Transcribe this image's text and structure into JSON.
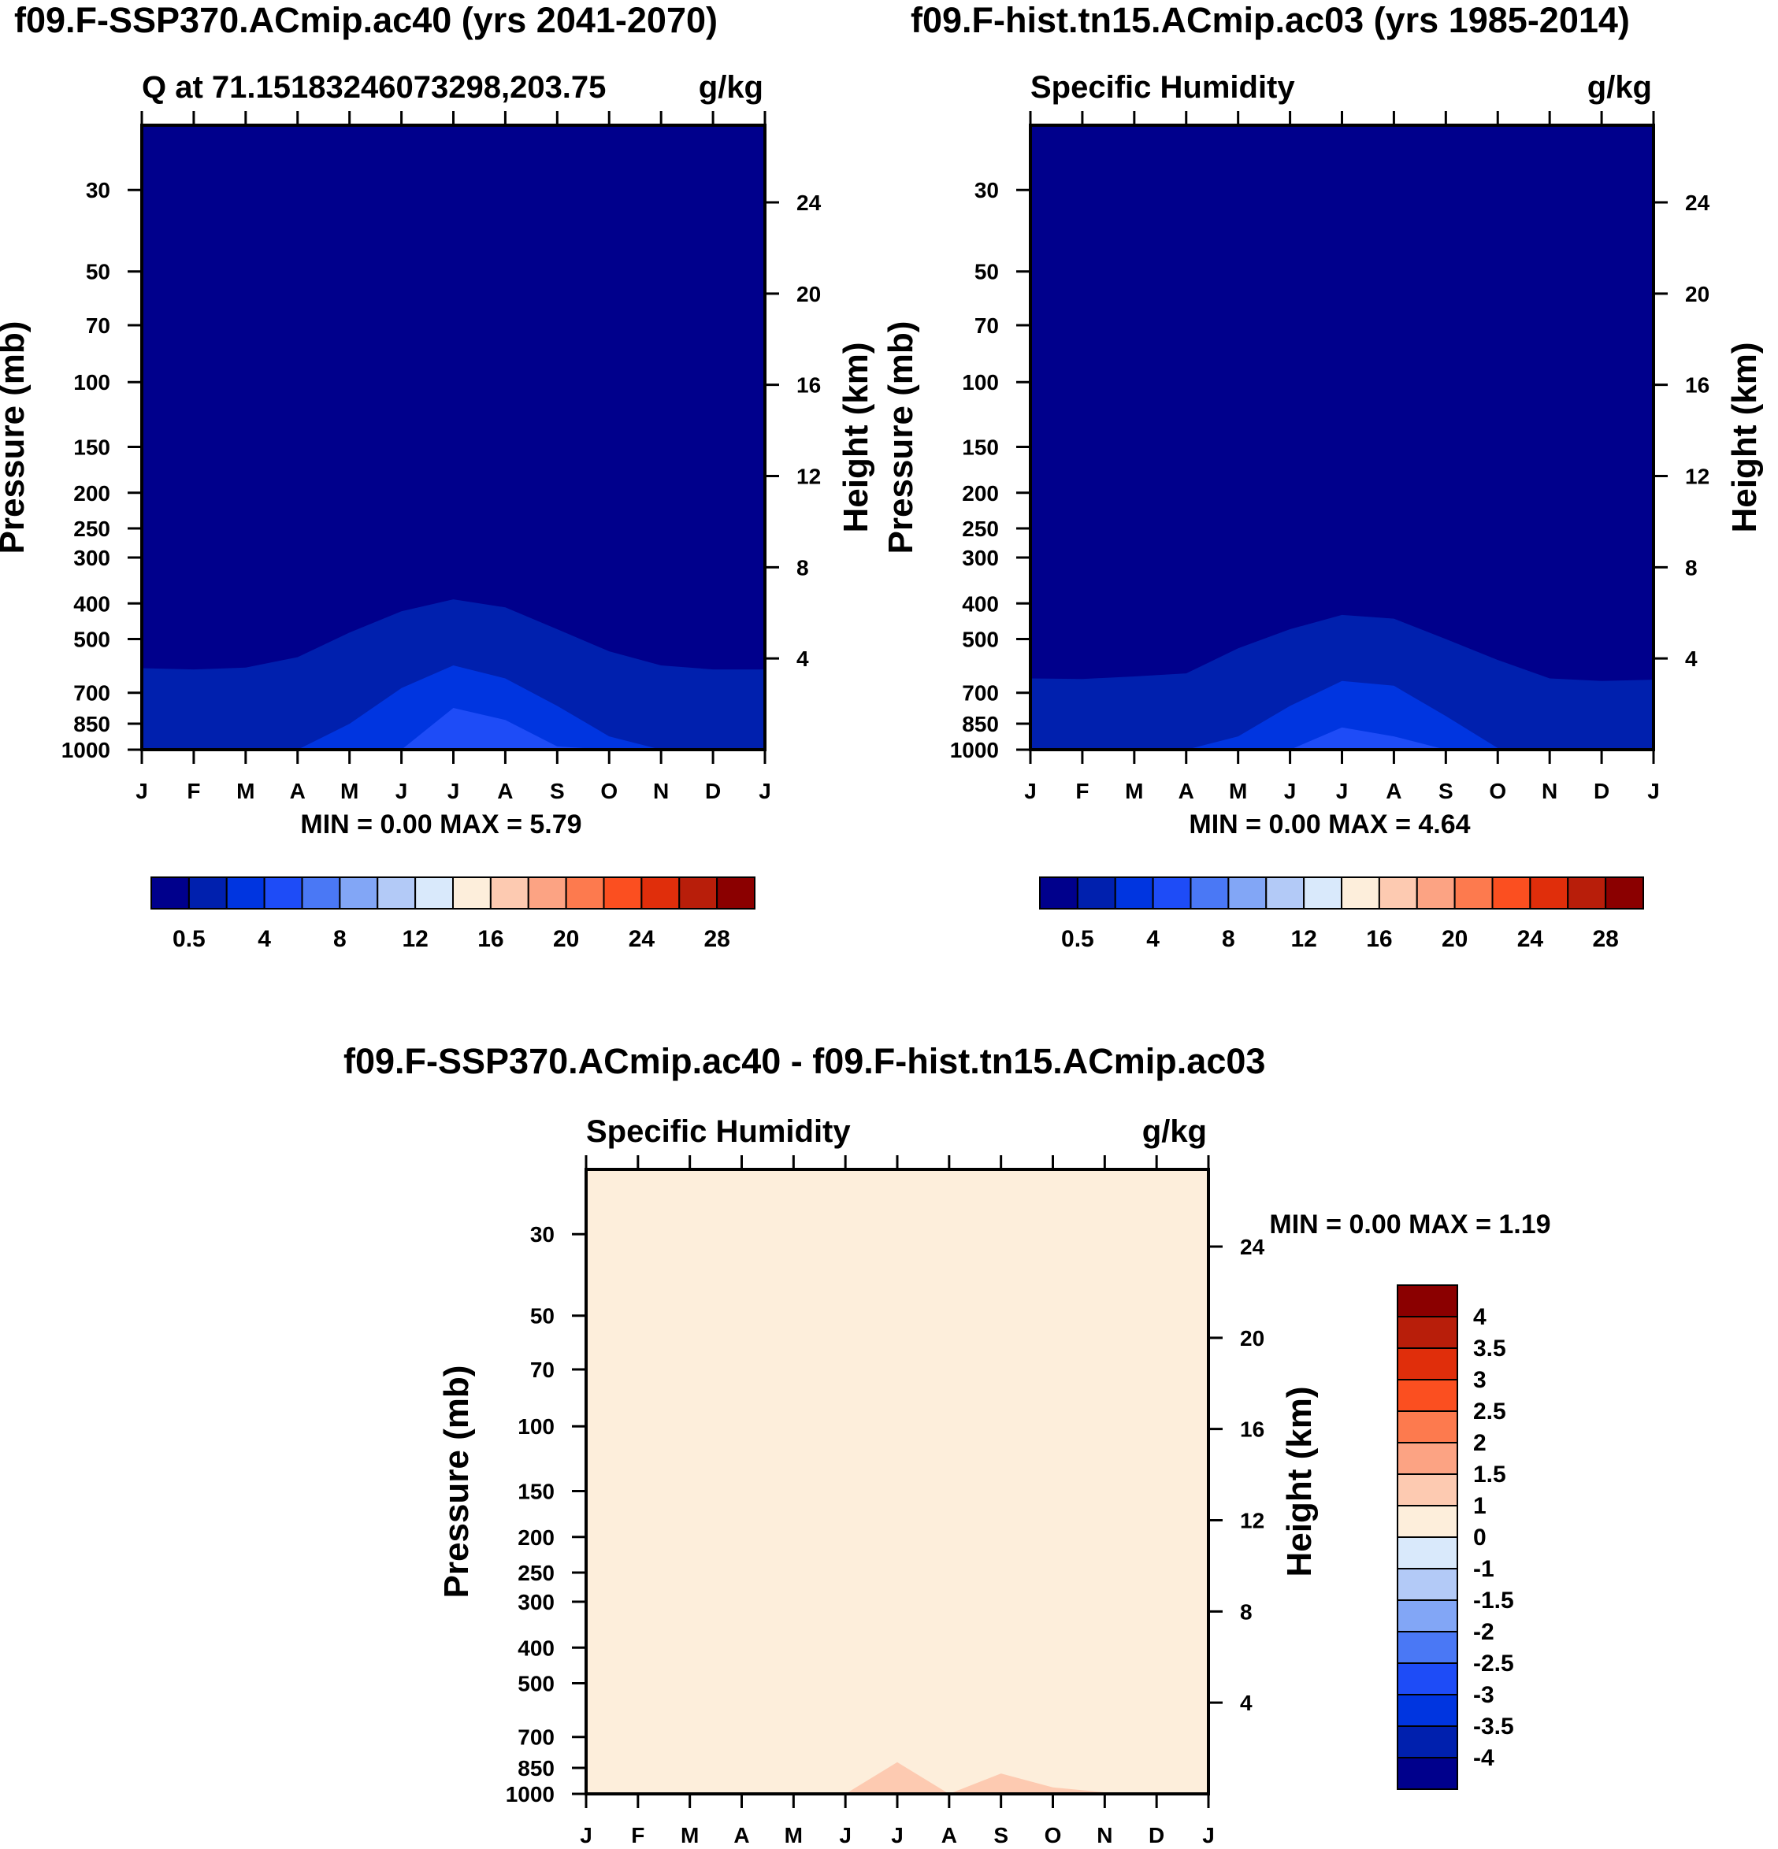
{
  "page": {
    "title_left": "f09.F-SSP370.ACmip.ac40 (yrs 2041-2070)",
    "title_right": "f09.F-hist.tn15.ACmip.ac03 (yrs 1985-2014)",
    "title_bottom": "f09.F-SSP370.ACmip.ac40 - f09.F-hist.tn15.ACmip.ac03"
  },
  "colors": {
    "abs_scale": [
      "#00008c",
      "#0020ae",
      "#0035e0",
      "#1e4cf7",
      "#4a78f5",
      "#82a6f6",
      "#b3caf7",
      "#d9e9fb",
      "#fdeedb",
      "#fdcab1",
      "#fca383",
      "#fd7a4e",
      "#fb4f20",
      "#e02e0b",
      "#b81e0a",
      "#8b0000"
    ],
    "diff_scale": [
      "#00008c",
      "#0020ae",
      "#0035e0",
      "#1e4cf7",
      "#4a78f5",
      "#82a6f6",
      "#b3caf7",
      "#d9e9fb",
      "#fdeedb",
      "#fdcab1",
      "#fca383",
      "#fd7a4e",
      "#fb4f20",
      "#e02e0b",
      "#b81e0a",
      "#8b0000"
    ]
  },
  "chart_data": [
    {
      "id": "left",
      "type": "contour",
      "left_title": "Q at 71.15183246073298,203.75",
      "right_title": "g/kg",
      "ylabel": "Pressure (mb)",
      "y2label": "Height (km)",
      "x_ticks": [
        "J",
        "F",
        "M",
        "A",
        "M",
        "J",
        "J",
        "A",
        "S",
        "O",
        "N",
        "D",
        "J"
      ],
      "y_ticks": [
        30,
        50,
        70,
        100,
        150,
        200,
        250,
        300,
        400,
        500,
        700,
        850,
        1000
      ],
      "y2_ticks": [
        24,
        20,
        16,
        12,
        8,
        4
      ],
      "ylim": [
        20,
        1000
      ],
      "min_label": "MIN =",
      "min_value": "0.00",
      "max_label": "MAX =",
      "max_value": "5.79",
      "colorbar_labels": [
        "0.5",
        "4",
        "8",
        "12",
        "16",
        "20",
        "24",
        "28"
      ],
      "background_level": 0,
      "contours": [
        {
          "level": 1,
          "top_pressure": [
            600,
            605,
            598,
            560,
            480,
            420,
            390,
            410,
            470,
            540,
            590,
            605,
            605
          ]
        },
        {
          "level": 2,
          "top_pressure": [
            1000,
            1000,
            1000,
            1000,
            850,
            680,
            590,
            640,
            760,
            920,
            1000,
            1000,
            1000
          ]
        },
        {
          "level": 3,
          "top_pressure": [
            1000,
            1000,
            1000,
            1000,
            1000,
            1000,
            770,
            830,
            980,
            1000,
            1000,
            1000,
            1000
          ]
        }
      ]
    },
    {
      "id": "right",
      "type": "contour",
      "left_title": "Specific Humidity",
      "right_title": "g/kg",
      "ylabel": "Pressure (mb)",
      "y2label": "Height (km)",
      "x_ticks": [
        "J",
        "F",
        "M",
        "A",
        "M",
        "J",
        "J",
        "A",
        "S",
        "O",
        "N",
        "D",
        "J"
      ],
      "y_ticks": [
        30,
        50,
        70,
        100,
        150,
        200,
        250,
        300,
        400,
        500,
        700,
        850,
        1000
      ],
      "y2_ticks": [
        24,
        20,
        16,
        12,
        8,
        4
      ],
      "ylim": [
        20,
        1000
      ],
      "min_label": "MIN =",
      "min_value": "0.00",
      "max_label": "MAX =",
      "max_value": "4.64",
      "colorbar_labels": [
        "0.5",
        "4",
        "8",
        "12",
        "16",
        "20",
        "24",
        "28"
      ],
      "background_level": 0,
      "contours": [
        {
          "level": 1,
          "top_pressure": [
            640,
            642,
            632,
            620,
            530,
            470,
            430,
            440,
            500,
            570,
            640,
            650,
            645
          ]
        },
        {
          "level": 2,
          "top_pressure": [
            1000,
            1000,
            1000,
            1000,
            920,
            760,
            650,
            670,
            810,
            990,
            1000,
            1000,
            1000
          ]
        },
        {
          "level": 3,
          "top_pressure": [
            1000,
            1000,
            1000,
            1000,
            1000,
            1000,
            870,
            920,
            1000,
            1000,
            1000,
            1000,
            1000
          ]
        }
      ]
    },
    {
      "id": "diff",
      "type": "contour",
      "left_title": "Specific Humidity",
      "right_title": "g/kg",
      "ylabel": "Pressure (mb)",
      "y2label": "Height (km)",
      "x_ticks": [
        "J",
        "F",
        "M",
        "A",
        "M",
        "J",
        "J",
        "A",
        "S",
        "O",
        "N",
        "D",
        "J"
      ],
      "y_ticks": [
        30,
        50,
        70,
        100,
        150,
        200,
        250,
        300,
        400,
        500,
        700,
        850,
        1000
      ],
      "y2_ticks": [
        24,
        20,
        16,
        12,
        8,
        4
      ],
      "ylim": [
        20,
        1000
      ],
      "min_label": "MIN =",
      "min_value": "0.00",
      "max_label": "MAX =",
      "max_value": "1.19",
      "colorbar_labels": [
        "4",
        "3.5",
        "3",
        "2.5",
        "2",
        "1.5",
        "1",
        "0",
        "-1",
        "-1.5",
        "-2",
        "-2.5",
        "-3",
        "-3.5",
        "-4"
      ],
      "background_level": 8,
      "contours": [
        {
          "level": 9,
          "top_pressure": [
            1000,
            1000,
            1000,
            1000,
            1000,
            1000,
            820,
            1000,
            880,
            960,
            990,
            1000,
            1000
          ]
        }
      ]
    }
  ]
}
